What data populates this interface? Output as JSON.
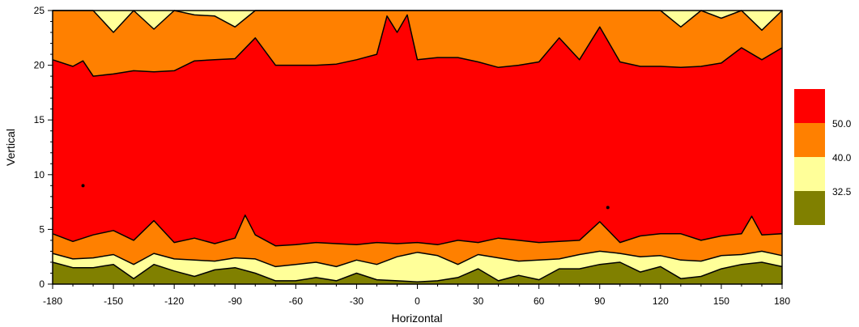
{
  "chart_data": {
    "type": "contour",
    "xlabel": "Horizontal",
    "ylabel": "Vertical",
    "xlim": [
      -180,
      180
    ],
    "ylim": [
      0,
      25
    ],
    "xticks": [
      -180,
      -150,
      -120,
      -90,
      -60,
      -30,
      0,
      30,
      60,
      90,
      120,
      150,
      180
    ],
    "yticks": [
      0,
      5,
      10,
      15,
      20,
      25
    ],
    "grid": false,
    "legend_position": "right",
    "levels": [
      32.5,
      40.0,
      50.0
    ],
    "level_labels": [
      "32.5",
      "40.0",
      "50.0"
    ],
    "band_colors": [
      "#808000",
      "#FFFF99",
      "#FF8000",
      "#FF0000"
    ],
    "bands": [
      {
        "range": "< 32.5",
        "color": "#808000"
      },
      {
        "range": "32.5 - 40.0",
        "color": "#FFFF99"
      },
      {
        "range": "40.0 - 50.0",
        "color": "#FF8000"
      },
      {
        "range": "> 50.0",
        "color": "#FF0000"
      }
    ],
    "contours": {
      "bottom_32_5": {
        "x": [
          -180,
          -170,
          -160,
          -150,
          -140,
          -130,
          -120,
          -110,
          -100,
          -90,
          -80,
          -70,
          -60,
          -50,
          -40,
          -30,
          -20,
          -10,
          0,
          10,
          20,
          30,
          40,
          50,
          60,
          70,
          80,
          90,
          100,
          110,
          120,
          130,
          140,
          150,
          160,
          170,
          180
        ],
        "y": [
          2.0,
          1.5,
          1.5,
          1.8,
          0.5,
          1.8,
          1.2,
          0.7,
          1.3,
          1.5,
          1.0,
          0.3,
          0.3,
          0.6,
          0.3,
          1.0,
          0.4,
          0.3,
          0.2,
          0.3,
          0.6,
          1.4,
          0.3,
          0.8,
          0.4,
          1.4,
          1.4,
          1.8,
          2.0,
          1.1,
          1.6,
          0.5,
          0.7,
          1.4,
          1.8,
          2.0,
          1.6
        ]
      },
      "bottom_40_0": {
        "x": [
          -180,
          -170,
          -160,
          -150,
          -140,
          -130,
          -120,
          -110,
          -100,
          -90,
          -80,
          -70,
          -60,
          -50,
          -40,
          -30,
          -20,
          -10,
          0,
          10,
          20,
          30,
          40,
          50,
          60,
          70,
          80,
          90,
          100,
          110,
          120,
          130,
          140,
          150,
          160,
          170,
          180
        ],
        "y": [
          2.8,
          2.3,
          2.4,
          2.7,
          1.8,
          2.8,
          2.3,
          2.2,
          2.1,
          2.4,
          2.3,
          1.6,
          1.8,
          2.0,
          1.6,
          2.2,
          1.8,
          2.5,
          2.9,
          2.6,
          1.8,
          2.7,
          2.4,
          2.1,
          2.2,
          2.3,
          2.7,
          3.0,
          2.8,
          2.5,
          2.6,
          2.2,
          2.1,
          2.6,
          2.7,
          3.0,
          2.6
        ]
      },
      "bottom_50_0": {
        "x": [
          -180,
          -170,
          -160,
          -150,
          -140,
          -130,
          -120,
          -110,
          -100,
          -90,
          -85,
          -80,
          -70,
          -60,
          -50,
          -40,
          -30,
          -20,
          -10,
          0,
          10,
          20,
          30,
          40,
          50,
          60,
          70,
          80,
          90,
          100,
          110,
          120,
          130,
          140,
          150,
          160,
          165,
          170,
          180
        ],
        "y": [
          4.6,
          3.9,
          4.5,
          4.9,
          4.0,
          5.8,
          3.8,
          4.2,
          3.7,
          4.2,
          6.3,
          4.5,
          3.5,
          3.6,
          3.8,
          3.7,
          3.6,
          3.8,
          3.7,
          3.8,
          3.6,
          4.0,
          3.8,
          4.2,
          4.0,
          3.8,
          3.9,
          4.0,
          5.7,
          3.8,
          4.4,
          4.6,
          4.6,
          4.0,
          4.4,
          4.6,
          6.2,
          4.5,
          4.6
        ]
      },
      "top_50_0": {
        "x": [
          -180,
          -170,
          -165,
          -160,
          -150,
          -140,
          -130,
          -120,
          -110,
          -100,
          -90,
          -80,
          -70,
          -60,
          -50,
          -40,
          -30,
          -20,
          -15,
          -10,
          -5,
          0,
          10,
          20,
          30,
          40,
          50,
          60,
          70,
          80,
          90,
          100,
          110,
          120,
          130,
          140,
          150,
          160,
          170,
          180
        ],
        "y": [
          20.5,
          19.9,
          20.4,
          19.0,
          19.2,
          19.5,
          19.4,
          19.5,
          20.4,
          20.5,
          20.6,
          22.5,
          20.0,
          20.0,
          20.0,
          20.1,
          20.5,
          21.0,
          24.5,
          23.0,
          24.6,
          20.5,
          20.7,
          20.7,
          20.3,
          19.8,
          20.0,
          20.3,
          22.5,
          20.5,
          23.5,
          20.3,
          19.9,
          19.9,
          19.8,
          19.9,
          20.2,
          21.6,
          20.5,
          21.6
        ]
      },
      "top_40_0": {
        "x": [
          -180,
          -170,
          -160,
          -150,
          -140,
          -130,
          -120,
          -110,
          -100,
          -90,
          -80,
          -70,
          -60,
          -50,
          -40,
          -30,
          -20,
          -10,
          0,
          10,
          20,
          30,
          40,
          50,
          60,
          70,
          80,
          90,
          100,
          110,
          120,
          130,
          140,
          150,
          160,
          170,
          180
        ],
        "y": [
          25,
          25,
          25,
          23.0,
          25,
          23.3,
          25,
          24.6,
          24.5,
          23.5,
          25,
          25,
          25,
          25,
          25,
          25,
          25,
          25,
          25,
          25,
          25,
          25,
          25,
          25,
          25,
          25,
          25,
          25,
          25,
          25,
          25,
          23.5,
          25,
          24.3,
          25,
          23.2,
          25
        ]
      },
      "closed_points": [
        {
          "x": -165,
          "y": 9.0
        },
        {
          "x": 94,
          "y": 7.0
        }
      ]
    }
  }
}
